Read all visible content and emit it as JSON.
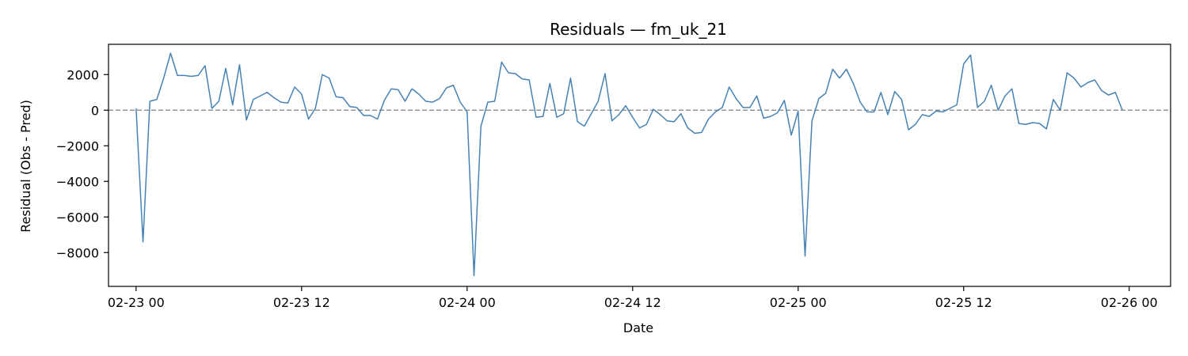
{
  "chart_data": {
    "type": "line",
    "title": "Residuals — fm_uk_21",
    "xlabel": "Date",
    "ylabel": "Residual (Obs - Pred)",
    "x_ticks": [
      "02-23 00",
      "02-23 12",
      "02-24 00",
      "02-24 12",
      "02-25 00",
      "02-25 12",
      "02-26 00"
    ],
    "y_ticks": [
      2000,
      0,
      -2000,
      -4000,
      -6000,
      -8000
    ],
    "y_tick_labels": [
      "2000",
      "0",
      "−2000",
      "−4000",
      "−6000",
      "−8000"
    ],
    "xlim": [
      "2023-02-22T22:00",
      "2023-02-26T03:00"
    ],
    "ylim": [
      -9900,
      3700
    ],
    "grid": false,
    "zero_line": {
      "y": 0,
      "style": "dashed",
      "color": "#808080"
    },
    "series": [
      {
        "color": "#4682b4",
        "start": "2023-02-23T00:00",
        "step_hours": 0.5,
        "values": [
          100,
          -7400,
          500,
          600,
          1800,
          3200,
          1950,
          1950,
          1900,
          1950,
          2500,
          100,
          500,
          2350,
          300,
          2550,
          -550,
          600,
          800,
          1000,
          700,
          450,
          400,
          1300,
          900,
          -500,
          100,
          2000,
          1800,
          750,
          700,
          200,
          150,
          -300,
          -300,
          -500,
          550,
          1200,
          1150,
          500,
          1200,
          900,
          500,
          450,
          650,
          1250,
          1400,
          450,
          -100,
          -9300,
          -900,
          450,
          500,
          2700,
          2100,
          2050,
          1750,
          1700,
          -400,
          -350,
          1500,
          -400,
          -200,
          1800,
          -650,
          -900,
          -200,
          500,
          2050,
          -600,
          -250,
          250,
          -400,
          -1000,
          -800,
          50,
          -250,
          -600,
          -650,
          -200,
          -1000,
          -1300,
          -1250,
          -500,
          -100,
          150,
          1300,
          650,
          150,
          150,
          800,
          -450,
          -350,
          -150,
          550,
          -1400,
          -50,
          -8200,
          -600,
          650,
          950,
          2300,
          1800,
          2300,
          1500,
          450,
          -100,
          -100,
          1000,
          -250,
          1050,
          600,
          -1100,
          -800,
          -250,
          -350,
          -50,
          -100,
          100,
          300,
          2600,
          3100,
          150,
          500,
          1400,
          0,
          800,
          1200,
          -750,
          -800,
          -700,
          -750,
          -1050,
          600,
          0,
          2100,
          1800,
          1300,
          1550,
          1700,
          1100,
          850,
          1000,
          0
        ]
      }
    ]
  }
}
